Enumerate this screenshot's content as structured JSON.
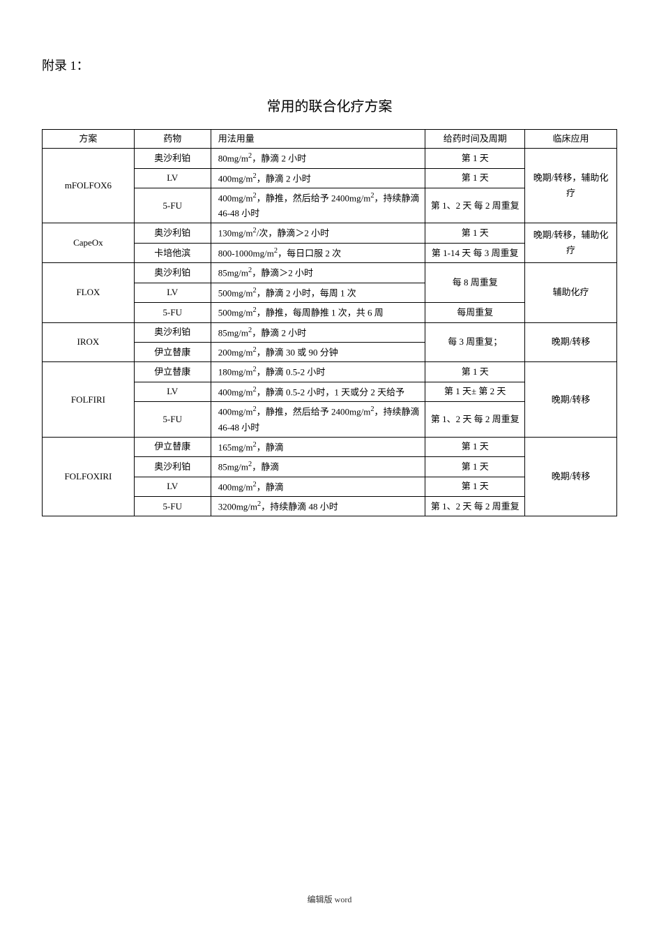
{
  "appendix_label": "附录 1：",
  "title": "常用的联合化疗方案",
  "footer": "编辑版 word",
  "columns": [
    "方案",
    "药物",
    "用法用量",
    "给药时间及周期",
    "临床应用"
  ],
  "col_classes": [
    "c-plan",
    "c-drug",
    "c-dose",
    "c-time",
    "c-use"
  ],
  "rows": [
    {
      "plan": "mFOLFOX6",
      "plan_span": 3,
      "drug": "奥沙利铂",
      "dose": "80mg/m²，静滴 2 小时",
      "time": "第 1 天",
      "use": "晚期/转移，辅助化疗",
      "use_span": 3
    },
    {
      "drug": "LV",
      "dose": "400mg/m²，静滴 2 小时",
      "time": "第 1 天"
    },
    {
      "drug": "5-FU",
      "dose": "400mg/m²，静推，然后给予 2400mg/m²，持续静滴 46-48 小时",
      "time": "第 1、2 天 每 2 周重复"
    },
    {
      "plan": "CapeOx",
      "plan_span": 2,
      "drug": "奥沙利铂",
      "dose": "130mg/m²/次，静滴＞2 小时",
      "time": "第 1 天",
      "use": "晚期/转移，辅助化疗",
      "use_span": 2
    },
    {
      "drug": "卡培他滨",
      "dose": "800-1000mg/m²，每日口服 2 次",
      "time": "第 1-14 天 每 3 周重复"
    },
    {
      "plan": "FLOX",
      "plan_span": 3,
      "drug": "奥沙利铂",
      "dose": "85mg/m²，静滴＞2 小时",
      "time": "每 8 周重复",
      "time_span": 2,
      "use": "辅助化疗",
      "use_span": 3
    },
    {
      "drug": "LV",
      "dose": "500mg/m²，静滴 2 小时，每周 1 次"
    },
    {
      "drug": "5-FU",
      "dose": "500mg/m²，静推，每周静推 1 次，共 6 周",
      "time": "每周重复"
    },
    {
      "plan": "IROX",
      "plan_span": 2,
      "drug": "奥沙利铂",
      "dose": "85mg/m²，静滴 2 小时",
      "time": "每 3 周重复；",
      "time_span": 2,
      "use": "晚期/转移",
      "use_span": 2
    },
    {
      "drug": "伊立替康",
      "dose": "200mg/m²，静滴 30 或 90 分钟"
    },
    {
      "plan": "FOLFIRI",
      "plan_span": 3,
      "drug": "伊立替康",
      "dose": "180mg/m²，静滴 0.5-2 小时",
      "time": "第 1 天",
      "use": "晚期/转移",
      "use_span": 3
    },
    {
      "drug": "LV",
      "dose": "400mg/m²，静滴 0.5-2 小时，1 天或分 2 天给予",
      "time": "第 1 天± 第 2 天"
    },
    {
      "drug": "5-FU",
      "dose": "400mg/m²，静推，然后给予 2400mg/m²，持续静滴 46-48 小时",
      "time": "第 1、2 天 每 2 周重复"
    },
    {
      "plan": "FOLFOXIRI",
      "plan_span": 4,
      "drug": "伊立替康",
      "dose": "165mg/m²，静滴",
      "time": "第 1 天",
      "use": "晚期/转移",
      "use_span": 4
    },
    {
      "drug": "奥沙利铂",
      "dose": "85mg/m²，静滴",
      "time": "第 1 天"
    },
    {
      "drug": "LV",
      "dose": "400mg/m²，静滴",
      "time": "第 1 天"
    },
    {
      "drug": "5-FU",
      "dose": "3200mg/m²，持续静滴 48 小时",
      "time": "第 1、2 天 每 2 周重复"
    }
  ]
}
